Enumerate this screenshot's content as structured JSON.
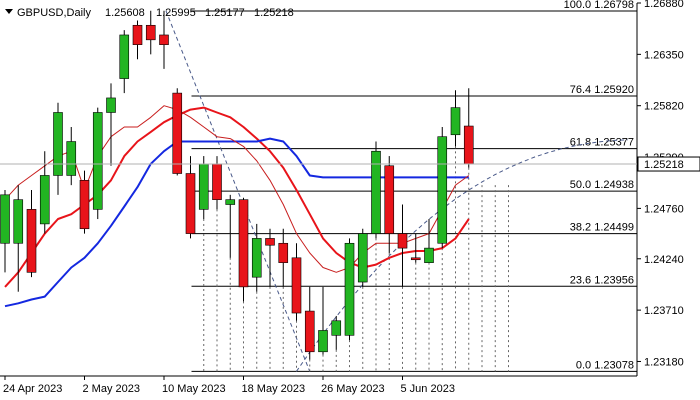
{
  "chart_data": {
    "type": "candlestick",
    "header": {
      "symbol": "GBPUSD,Daily",
      "ohlc": [
        "1.25608",
        "1.25995",
        "1.25177",
        "1.25218"
      ]
    },
    "ylim": [
      1.2303,
      1.2688
    ],
    "price_ticks": [
      "1.26880",
      "1.26350",
      "1.25820",
      "1.25290",
      "1.24760",
      "1.24240",
      "1.23710",
      "1.23180"
    ],
    "current_price": "1.25218",
    "date_ticks": [
      {
        "label": "24 Apr 2023",
        "index": 0
      },
      {
        "label": "2 May 2023",
        "index": 6
      },
      {
        "label": "10 May 2023",
        "index": 12
      },
      {
        "label": "18 May 2023",
        "index": 18
      },
      {
        "label": "26 May 2023",
        "index": 24
      },
      {
        "label": "5 Jun 2023",
        "index": 30
      }
    ],
    "candles": [
      {
        "o": 1.244,
        "h": 1.2495,
        "l": 1.241,
        "c": 1.249
      },
      {
        "o": 1.244,
        "h": 1.25,
        "l": 1.239,
        "c": 1.2485
      },
      {
        "o": 1.2475,
        "h": 1.2495,
        "l": 1.2405,
        "c": 1.241
      },
      {
        "o": 1.246,
        "h": 1.2535,
        "l": 1.245,
        "c": 1.251
      },
      {
        "o": 1.251,
        "h": 1.2585,
        "l": 1.249,
        "c": 1.2575
      },
      {
        "o": 1.251,
        "h": 1.256,
        "l": 1.25,
        "c": 1.2545
      },
      {
        "o": 1.2505,
        "h": 1.2515,
        "l": 1.245,
        "c": 1.2455
      },
      {
        "o": 1.2475,
        "h": 1.258,
        "l": 1.2465,
        "c": 1.2575
      },
      {
        "o": 1.2575,
        "h": 1.2605,
        "l": 1.252,
        "c": 1.259
      },
      {
        "o": 1.261,
        "h": 1.266,
        "l": 1.2595,
        "c": 1.2655
      },
      {
        "o": 1.2665,
        "h": 1.267,
        "l": 1.263,
        "c": 1.2645
      },
      {
        "o": 1.2665,
        "h": 1.268,
        "l": 1.2635,
        "c": 1.265
      },
      {
        "o": 1.2655,
        "h": 1.268,
        "l": 1.262,
        "c": 1.2645
      },
      {
        "o": 1.2595,
        "h": 1.26,
        "l": 1.251,
        "c": 1.2512
      },
      {
        "o": 1.2512,
        "h": 1.253,
        "l": 1.2445,
        "c": 1.245
      },
      {
        "o": 1.2475,
        "h": 1.253,
        "l": 1.2465,
        "c": 1.2522
      },
      {
        "o": 1.2522,
        "h": 1.253,
        "l": 1.2475,
        "c": 1.2485
      },
      {
        "o": 1.248,
        "h": 1.249,
        "l": 1.2425,
        "c": 1.2485
      },
      {
        "o": 1.2485,
        "h": 1.2487,
        "l": 1.238,
        "c": 1.2395
      },
      {
        "o": 1.2405,
        "h": 1.246,
        "l": 1.239,
        "c": 1.2445
      },
      {
        "o": 1.2445,
        "h": 1.2455,
        "l": 1.2395,
        "c": 1.2438
      },
      {
        "o": 1.244,
        "h": 1.2455,
        "l": 1.2395,
        "c": 1.242
      },
      {
        "o": 1.2425,
        "h": 1.244,
        "l": 1.236,
        "c": 1.2368
      },
      {
        "o": 1.237,
        "h": 1.2395,
        "l": 1.232,
        "c": 1.2328
      },
      {
        "o": 1.2328,
        "h": 1.2395,
        "l": 1.2325,
        "c": 1.235
      },
      {
        "o": 1.2345,
        "h": 1.2365,
        "l": 1.233,
        "c": 1.236
      },
      {
        "o": 1.2345,
        "h": 1.2445,
        "l": 1.234,
        "c": 1.244
      },
      {
        "o": 1.24,
        "h": 1.2455,
        "l": 1.2395,
        "c": 1.245
      },
      {
        "o": 1.245,
        "h": 1.2545,
        "l": 1.2445,
        "c": 1.2535
      },
      {
        "o": 1.252,
        "h": 1.253,
        "l": 1.243,
        "c": 1.245
      },
      {
        "o": 1.245,
        "h": 1.248,
        "l": 1.2395,
        "c": 1.2435
      },
      {
        "o": 1.2425,
        "h": 1.245,
        "l": 1.242,
        "c": 1.2423
      },
      {
        "o": 1.242,
        "h": 1.2465,
        "l": 1.242,
        "c": 1.2435
      },
      {
        "o": 1.244,
        "h": 1.256,
        "l": 1.2435,
        "c": 1.255
      },
      {
        "o": 1.2552,
        "h": 1.2598,
        "l": 1.254,
        "c": 1.258
      },
      {
        "o": 1.2561,
        "h": 1.26,
        "l": 1.2518,
        "c": 1.2522
      }
    ],
    "series": [
      {
        "name": "",
        "color": "#e8141a",
        "values": [
          1.2395,
          1.241,
          1.243,
          1.245,
          1.2465,
          1.247,
          1.248,
          1.249,
          1.2505,
          1.253,
          1.2545,
          1.2555,
          1.2565,
          1.2572,
          1.2578,
          1.258,
          1.2575,
          1.257,
          1.256,
          1.2548,
          1.2535,
          1.2518,
          1.2495,
          1.247,
          1.2445,
          1.243,
          1.242,
          1.2415,
          1.2418,
          1.2425,
          1.243,
          1.2432,
          1.2432,
          1.2435,
          1.2445,
          1.2465
        ]
      },
      {
        "name": "",
        "color": "#1428e0",
        "values": [
          1.2375,
          1.2378,
          1.2382,
          1.2385,
          1.24,
          1.2415,
          1.2425,
          1.244,
          1.2458,
          1.2478,
          1.2498,
          1.2522,
          1.2535,
          1.2545,
          1.2545,
          1.2545,
          1.2545,
          1.2545,
          1.2545,
          1.2545,
          1.2548,
          1.2545,
          1.253,
          1.251,
          1.2508,
          1.2508,
          1.2508,
          1.2508,
          1.2508,
          1.2508,
          1.2508,
          1.2508,
          1.2508,
          1.2508,
          1.2508,
          1.2508
        ]
      },
      {
        "name": "",
        "color": "#c81e1e",
        "values": [
          1.2485,
          1.25,
          1.251,
          1.252,
          1.253,
          1.2535,
          1.2495,
          1.253,
          1.255,
          1.256,
          1.256,
          1.257,
          1.2582,
          1.2578,
          1.257,
          1.256,
          1.255,
          1.2548,
          1.254,
          1.2525,
          1.2505,
          1.248,
          1.245,
          1.243,
          1.2415,
          1.241,
          1.2415,
          1.243,
          1.244,
          1.244,
          1.244,
          1.2445,
          1.245,
          1.2475,
          1.25,
          1.251
        ]
      }
    ],
    "fib": {
      "price_range": [
        1.23078,
        1.26798
      ],
      "levels": [
        {
          "label": "100.0",
          "price": "1.26798"
        },
        {
          "label": "76.4",
          "price": "1.25920"
        },
        {
          "label": "61.8",
          "price": "1.25377"
        },
        {
          "label": "50.0",
          "price": "1.24938"
        },
        {
          "label": "38.2",
          "price": "1.24499"
        },
        {
          "label": "23.6",
          "price": "1.23956"
        },
        {
          "label": "0.0",
          "price": "1.23078"
        }
      ]
    },
    "colors": {
      "bull": "#22b522",
      "bear": "#e8141a",
      "line_red": "#e8141a",
      "line_blue": "#1428e0",
      "grid": "#000000"
    }
  }
}
